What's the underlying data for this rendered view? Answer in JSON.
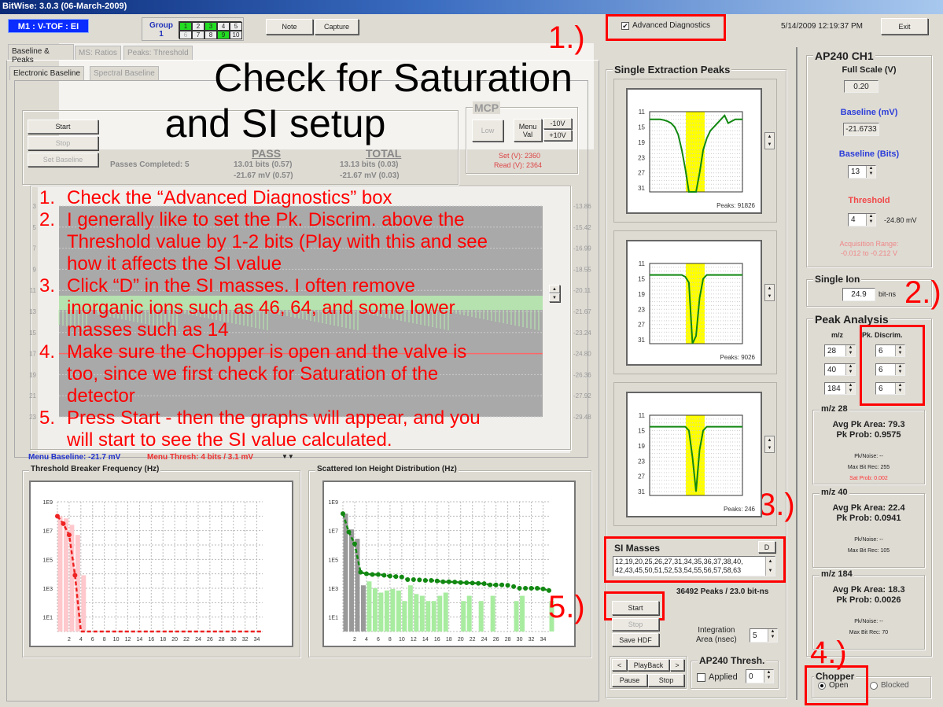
{
  "window": {
    "title": "BitWise: 3.0.3 (06-March-2009)"
  },
  "header": {
    "mode_label": "M1 : V-TOF : EI",
    "group": {
      "label": "Group",
      "number": "1",
      "cells": [
        {
          "n": "1",
          "state": "on"
        },
        {
          "n": "2",
          "state": "off"
        },
        {
          "n": "3",
          "state": "on"
        },
        {
          "n": "4",
          "state": "off"
        },
        {
          "n": "5",
          "state": "off"
        },
        {
          "n": "6",
          "state": "disabled"
        },
        {
          "n": "7",
          "state": "off"
        },
        {
          "n": "8",
          "state": "off"
        },
        {
          "n": "9",
          "state": "on"
        },
        {
          "n": "10",
          "state": "off"
        }
      ]
    },
    "note": "Note",
    "capture": "Capture",
    "advanced_diagnostics": {
      "label": "Advanced Diagnostics",
      "checked": true
    },
    "timestamp": "5/14/2009 12:19:37 PM",
    "exit": "Exit"
  },
  "tabs": [
    "Baseline & Peaks",
    "MS: Ratios",
    "Peaks: Threshold"
  ],
  "subtabs": [
    "Electronic Baseline",
    "Spectral Baseline"
  ],
  "baseline_controls": {
    "start": "Start",
    "stop": "Stop",
    "set_baseline": "Set Baseline",
    "passes_label": "Passes Completed: 5",
    "pass_header": "PASS",
    "total_header": "TOTAL",
    "pass_bits": "13.01 bits (0.57)",
    "pass_mv": "-21.67 mV (0.57)",
    "total_bits": "13.13 bits (0.03)",
    "total_mv": "-21.67 mV (0.03)"
  },
  "mcp": {
    "title": "MCP",
    "low": "Low",
    "menu_val": "Menu Val",
    "minus": "-10V",
    "plus": "+10V",
    "set": "Set (V): 2360",
    "read": "Read (V): 2364"
  },
  "waveform": {
    "left_ticks": [
      "3",
      "5",
      "7",
      "9",
      "11",
      "13",
      "15",
      "17",
      "19",
      "21",
      "23"
    ],
    "right_ticks": [
      "-13.86",
      "-15.42",
      "-16.99",
      "-18.55",
      "-20.11",
      "-21.67",
      "-23.24",
      "-24.80",
      "-26.36",
      "-27.92",
      "-29.48"
    ],
    "menu_baseline": "Menu Baseline: -21.7 mV",
    "menu_thresh": "Menu Thresh: 4 bits / 3.1 mV",
    "arrows": "▼▼"
  },
  "overlay": {
    "title_line1": "Check for Saturation",
    "title_line2": "and SI setup",
    "steps": [
      {
        "num": "1.",
        "lines": [
          "Check the “Advanced Diagnostics” box"
        ]
      },
      {
        "num": "2.",
        "lines": [
          "I generally like to set the Pk. Discrim. above the",
          "Threshold value by 1-2 bits (Play with this and see",
          "how it affects the SI value"
        ]
      },
      {
        "num": "3.",
        "lines": [
          "Click “D” in the SI masses.  I often remove",
          "inorganic ions such as 46, 64, and some lower",
          "masses such as 14"
        ]
      },
      {
        "num": "4.",
        "lines": [
          "Make sure the Chopper is open and the valve is",
          "too, since we first check for Saturation of the",
          "detector"
        ]
      },
      {
        "num": "5.",
        "lines": [
          "Press Start - then the graphs will appear, and you",
          "will start to see the SI value calculated."
        ]
      }
    ]
  },
  "annotations": {
    "a1": "1.)",
    "a2": "2.)",
    "a3": "3.)",
    "a4": "4.)",
    "a5": "5.)"
  },
  "chart_data": [
    {
      "type": "bar",
      "title": "Threshold Breaker Frequency (Hz)",
      "y_scale": "log",
      "ylim": [
        1,
        1000000000.0
      ],
      "y_ticks": [
        "1E9",
        "1E7",
        "1E5",
        "1E3",
        "1E1"
      ],
      "x_ticks": [
        "2",
        "4",
        "6",
        "8",
        "10",
        "12",
        "14",
        "16",
        "18",
        "20",
        "22",
        "24",
        "26",
        "28",
        "30",
        "32",
        "34"
      ],
      "xlim": [
        0,
        35
      ],
      "grid": true,
      "bar_color": "#ffc8cc",
      "line_color": "#ee2222",
      "bars": [
        {
          "x": 0,
          "y": 100000000.0
        },
        {
          "x": 1,
          "y": 70000000.0
        },
        {
          "x": 2,
          "y": 25000000.0
        },
        {
          "x": 3,
          "y": 5000000.0
        },
        {
          "x": 4,
          "y": 8000.0
        }
      ],
      "line": [
        {
          "x": 0,
          "y": 100000000.0
        },
        {
          "x": 1,
          "y": 30000000.0
        },
        {
          "x": 2,
          "y": 5000000.0
        },
        {
          "x": 3,
          "y": 8000.0
        },
        {
          "x": 4,
          "y": 1
        },
        {
          "x": 35,
          "y": 1
        }
      ],
      "range": [
        0,
        4
      ]
    },
    {
      "type": "bar",
      "title": "Scattered Ion Height Distribution (Hz)",
      "y_scale": "log",
      "ylim": [
        1,
        1000000000.0
      ],
      "y_ticks": [
        "1E9",
        "1E7",
        "1E5",
        "1E3",
        "1E1"
      ],
      "x_ticks": [
        "2",
        "4",
        "6",
        "8",
        "10",
        "12",
        "14",
        "16",
        "18",
        "20",
        "22",
        "24",
        "26",
        "28",
        "30",
        "32",
        "34"
      ],
      "xlim": [
        0,
        35
      ],
      "grid": true,
      "line_color": "#118811",
      "bars_gray": [
        {
          "x": 0,
          "y": 150000000.0
        },
        {
          "x": 1,
          "y": 12000000.0
        },
        {
          "x": 2,
          "y": 2700000.0
        },
        {
          "x": 3,
          "y": 1600
        }
      ],
      "bars_green": [
        {
          "x": 4,
          "y": 3000
        },
        {
          "x": 5,
          "y": 1000
        },
        {
          "x": 6,
          "y": 500
        },
        {
          "x": 7,
          "y": 700
        },
        {
          "x": 8,
          "y": 900
        },
        {
          "x": 9,
          "y": 700
        },
        {
          "x": 10,
          "y": 130
        },
        {
          "x": 11,
          "y": 1600
        },
        {
          "x": 12,
          "y": 400
        },
        {
          "x": 13,
          "y": 300
        },
        {
          "x": 14,
          "y": 130
        },
        {
          "x": 15,
          "y": 130
        },
        {
          "x": 16,
          "y": 300
        },
        {
          "x": 17,
          "y": 500
        },
        {
          "x": 20,
          "y": 130
        },
        {
          "x": 21,
          "y": 300
        },
        {
          "x": 23,
          "y": 130
        },
        {
          "x": 25,
          "y": 300
        },
        {
          "x": 29,
          "y": 130
        },
        {
          "x": 30,
          "y": 300
        },
        {
          "x": 35,
          "y": 130
        }
      ],
      "line": [
        {
          "x": 0,
          "y": 150000000.0
        },
        {
          "x": 1,
          "y": 8000000.0
        },
        {
          "x": 2,
          "y": 1200000.0
        },
        {
          "x": 3,
          "y": 13000.0
        },
        {
          "x": 4,
          "y": 10000.0
        },
        {
          "x": 5,
          "y": 9000
        },
        {
          "x": 6,
          "y": 9000
        },
        {
          "x": 7,
          "y": 8000
        },
        {
          "x": 8,
          "y": 7000
        },
        {
          "x": 9,
          "y": 6500
        },
        {
          "x": 10,
          "y": 6000
        },
        {
          "x": 11,
          "y": 4000
        },
        {
          "x": 12,
          "y": 4000
        },
        {
          "x": 13,
          "y": 3800
        },
        {
          "x": 14,
          "y": 3500
        },
        {
          "x": 15,
          "y": 3500
        },
        {
          "x": 16,
          "y": 3200
        },
        {
          "x": 17,
          "y": 2800
        },
        {
          "x": 18,
          "y": 2800
        },
        {
          "x": 19,
          "y": 2700
        },
        {
          "x": 20,
          "y": 2500
        },
        {
          "x": 21,
          "y": 2400
        },
        {
          "x": 22,
          "y": 2300
        },
        {
          "x": 23,
          "y": 2200
        },
        {
          "x": 24,
          "y": 2100
        },
        {
          "x": 25,
          "y": 1700
        },
        {
          "x": 26,
          "y": 1700
        },
        {
          "x": 27,
          "y": 1700
        },
        {
          "x": 28,
          "y": 1600
        },
        {
          "x": 29,
          "y": 1300
        },
        {
          "x": 30,
          "y": 1000
        },
        {
          "x": 31,
          "y": 1000
        },
        {
          "x": 32,
          "y": 1000
        },
        {
          "x": 33,
          "y": 1000
        },
        {
          "x": 34,
          "y": 900
        },
        {
          "x": 35,
          "y": 700
        }
      ],
      "range": [
        0,
        4
      ]
    }
  ],
  "peaks": {
    "title": "Single Extraction Peaks",
    "y_ticks": [
      "11",
      "15",
      "19",
      "23",
      "27",
      "31"
    ],
    "ylim": [
      11,
      32
    ],
    "highlight_color": "#ffff00",
    "curve_color": "#118811",
    "panels": [
      {
        "label": "Peaks: 91826",
        "curve": [
          13,
          13,
          13,
          13,
          13.2,
          13.5,
          14,
          15,
          17,
          21,
          26,
          32,
          32,
          32,
          27,
          21,
          18,
          16,
          15,
          14,
          13,
          12,
          14,
          13.5,
          13,
          13,
          13
        ]
      },
      {
        "label": "Peaks: 9026",
        "curve": [
          14,
          14,
          14,
          14,
          14,
          14,
          14,
          14,
          14,
          14,
          14.5,
          16,
          32,
          30,
          20,
          15,
          14,
          14,
          14,
          14,
          14,
          14,
          14,
          14,
          14,
          14,
          14
        ]
      },
      {
        "label": "Peaks: 246",
        "curve": [
          14,
          14,
          14,
          14,
          14,
          14,
          14,
          14,
          14,
          14,
          14,
          15,
          22,
          31,
          20,
          15,
          14,
          14,
          14,
          14,
          14,
          14,
          14,
          14,
          14,
          14,
          14
        ]
      }
    ]
  },
  "si_masses": {
    "title": "SI Masses",
    "d_button": "D",
    "line1": "12,19,20,25,26,27,31,34,35,36,37,38,40,",
    "line2": "42,43,45,50,51,52,53,54,55,56,57,58,63",
    "summary": "36492 Peaks / 23.0 bit-ns"
  },
  "acq_controls": {
    "start": "Start",
    "stop": "Stop",
    "save_hdf": "Save HDF",
    "integration_label1": "Integration",
    "integration_label2": "Area (nsec)",
    "integration_value": "5",
    "prev": "<",
    "playback": "PlayBack",
    "next": ">",
    "pause": "Pause",
    "pb_stop": "Stop",
    "thresh_title": "AP240 Thresh.",
    "applied_label": "Applied",
    "applied_checked": false,
    "thresh_value": "0"
  },
  "ap240": {
    "title": "AP240 CH1",
    "full_scale_label": "Full Scale (V)",
    "full_scale": "0.20",
    "baseline_mv_label": "Baseline (mV)",
    "baseline_mv": "-21.6733",
    "baseline_bits_label": "Baseline (Bits)",
    "baseline_bits": "13",
    "threshold_label": "Threshold",
    "threshold": "4",
    "threshold_mv": "-24.80 mV",
    "acq_range1": "Acquisition Range:",
    "acq_range2": "-0.012 to -0.212 V"
  },
  "single_ion": {
    "title": "Single Ion",
    "value": "24.9",
    "unit": "bit-ns"
  },
  "peak_analysis": {
    "title": "Peak Analysis",
    "mz_header": "m/z",
    "discrim_header": "Pk. Discrim.",
    "rows": [
      {
        "mz": "28",
        "discrim": "6"
      },
      {
        "mz": "40",
        "discrim": "6"
      },
      {
        "mz": "184",
        "discrim": "6"
      }
    ],
    "groups": [
      {
        "title": "m/z 28",
        "area": "Avg Pk Area: 79.3",
        "prob": "Pk Prob: 0.9575",
        "noise": "Pk/Noise: --",
        "maxbit": "Max Bit Rec: 255",
        "sat": "Sat Prob: 0.002"
      },
      {
        "title": "m/z 40",
        "area": "Avg Pk Area: 22.4",
        "prob": "Pk Prob: 0.0941",
        "noise": "Pk/Noise: --",
        "maxbit": "Max Bit Rec: 105"
      },
      {
        "title": "m/z 184",
        "area": "Avg Pk Area: 18.3",
        "prob": "Pk Prob: 0.0026",
        "noise": "Pk/Noise: --",
        "maxbit": "Max Bit Rec: 70"
      }
    ]
  },
  "chopper": {
    "title": "Chopper",
    "open": "Open",
    "blocked": "Blocked",
    "selected": "Open"
  }
}
